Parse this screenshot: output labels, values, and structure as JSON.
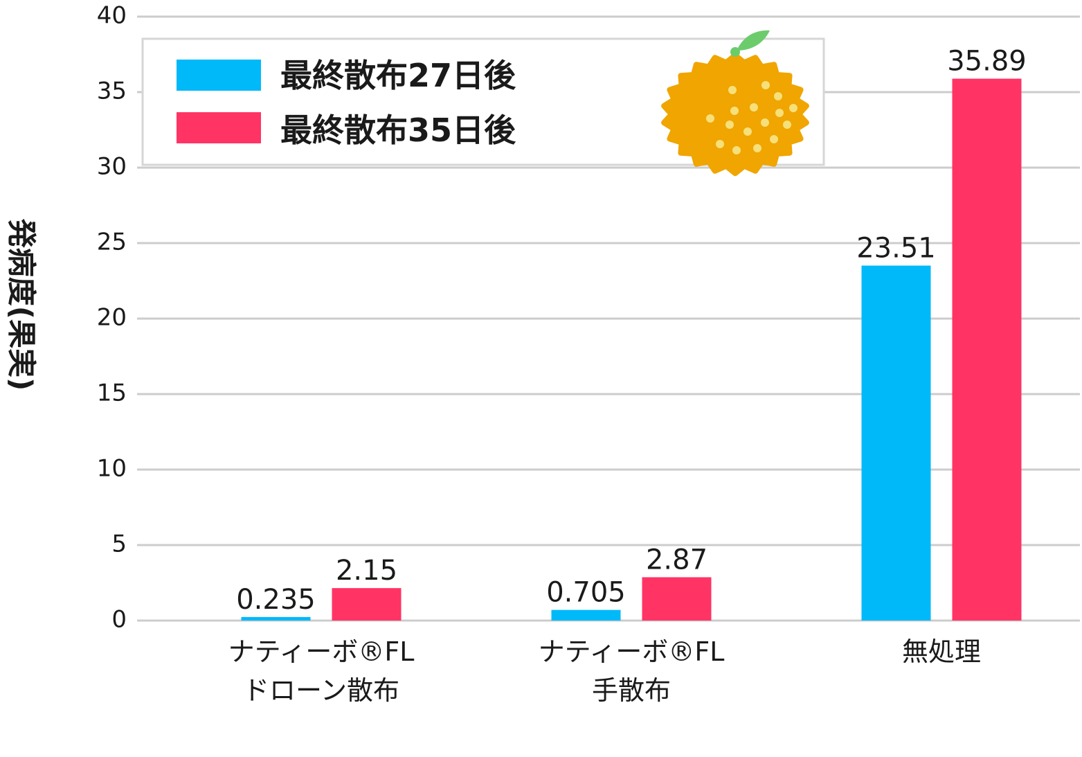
{
  "chart_data": {
    "type": "bar",
    "ylabel": "発病度(果実)",
    "ylim": [
      0,
      40
    ],
    "yticks": [
      0,
      5,
      10,
      15,
      20,
      25,
      30,
      35,
      40
    ],
    "grid": true,
    "legend_placement": "top-left",
    "categories": [
      [
        "ナティーボ®FL",
        "ドローン散布"
      ],
      [
        "ナティーボ®FL",
        "手散布"
      ],
      [
        "無処理"
      ]
    ],
    "series": [
      {
        "name": "最終散布27日後",
        "color": "#00b9f9",
        "values": [
          0.235,
          0.705,
          23.51
        ],
        "labels": [
          "0.235",
          "0.705",
          "23.51"
        ]
      },
      {
        "name": "最終散布35日後",
        "color": "#ff3465",
        "values": [
          2.15,
          2.87,
          35.89
        ],
        "labels": [
          "2.15",
          "2.87",
          "35.89"
        ]
      }
    ]
  },
  "illustration": {
    "icon": "yuzu-fruit-icon",
    "fruit_color": "#f0a500",
    "leaf_color": "#6ccc6c",
    "dot_color": "#f7e07a"
  }
}
